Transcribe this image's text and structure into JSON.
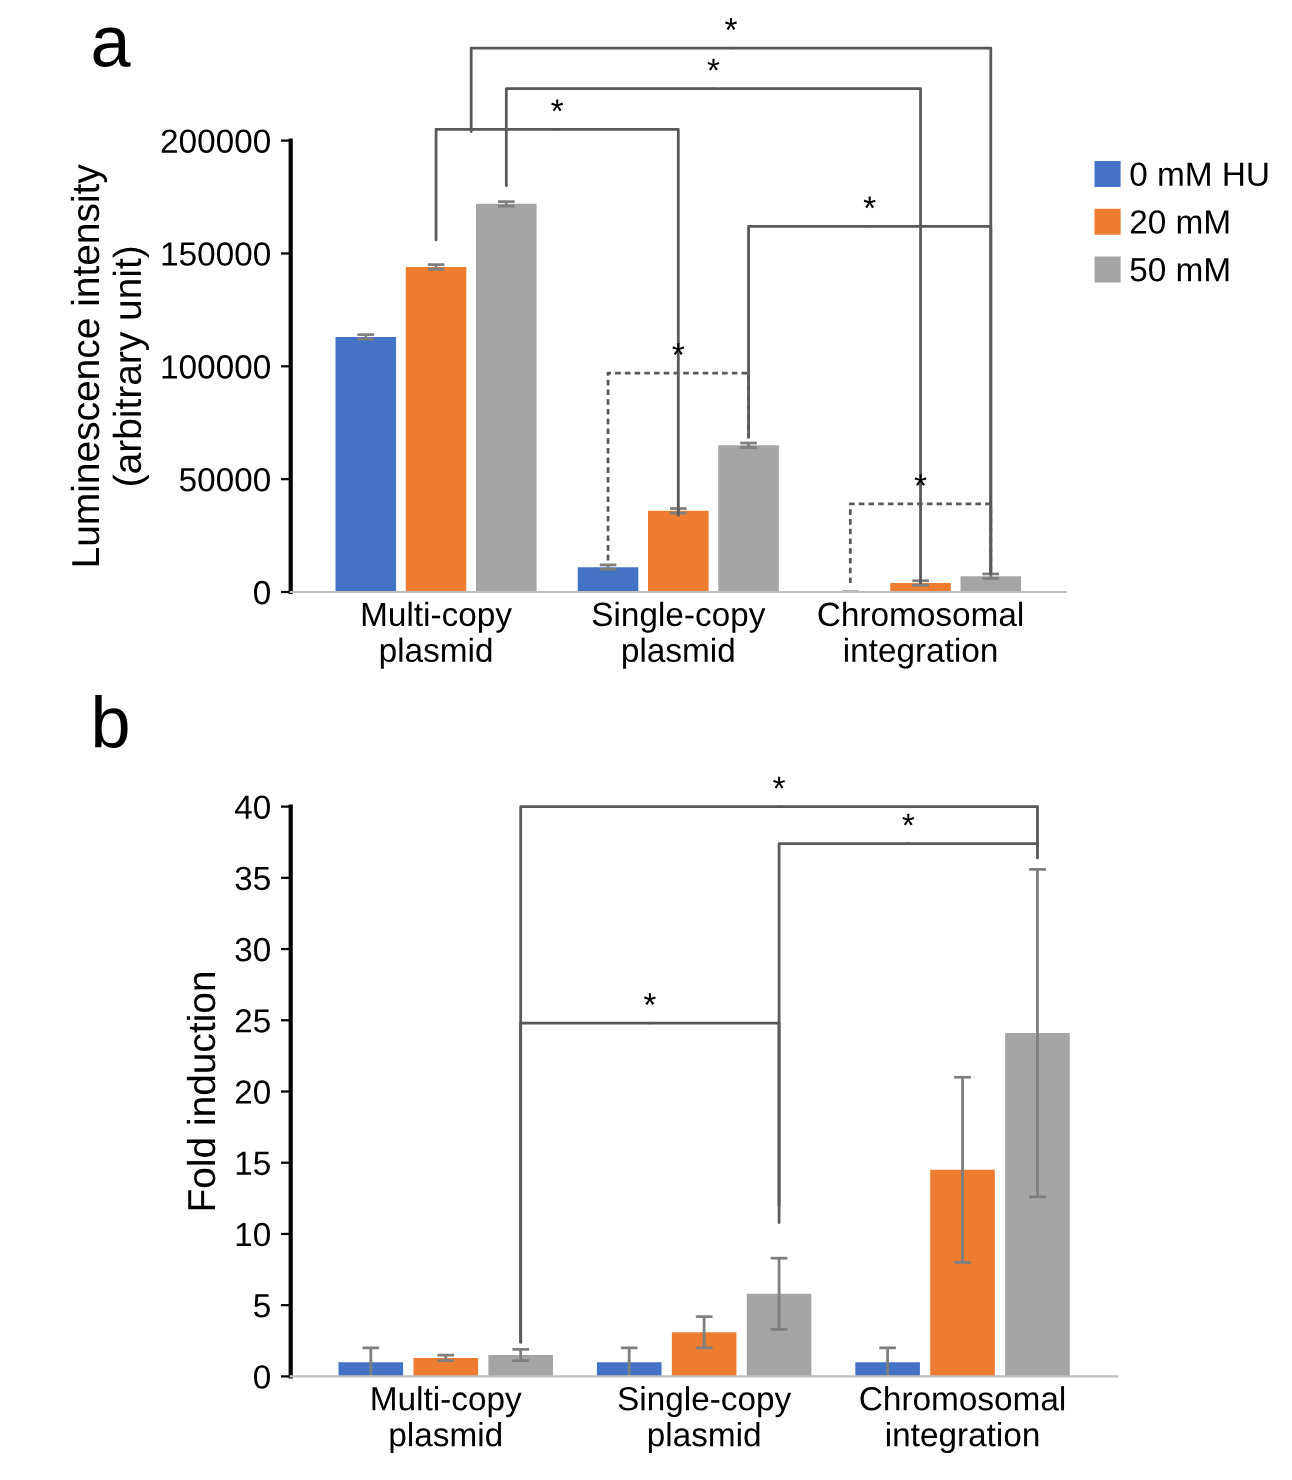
{
  "chart_data": [
    {
      "type": "bar",
      "title": "a",
      "ylabel": "Luminescence intensity\n(arbitrary unit)",
      "categories": [
        "Multi-copy\nplasmid",
        "Single-copy\nplasmid",
        "Chromosomal\nintegration"
      ],
      "series": [
        {
          "name": "0 mM HU",
          "color": "#4472c4",
          "values": [
            113000,
            11000,
            0
          ],
          "errors": [
            1000,
            1000,
            0
          ]
        },
        {
          "name": "20 mM",
          "color": "#ed7d31",
          "values": [
            144000,
            36000,
            4000
          ],
          "errors": [
            1000,
            1000,
            1000
          ]
        },
        {
          "name": "50 mM",
          "color": "#a5a5a5",
          "values": [
            172000,
            65000,
            7000
          ],
          "errors": [
            1000,
            1000,
            1000
          ]
        }
      ],
      "ylim": [
        0,
        200000
      ],
      "yticks": [
        0,
        50000,
        100000,
        150000,
        200000
      ],
      "grid": false,
      "legend": "top right",
      "annotations": [
        "*",
        "*",
        "*",
        "*",
        "*",
        "*"
      ]
    },
    {
      "type": "bar",
      "title": "b",
      "ylabel": "Fold induction",
      "categories": [
        "Multi-copy\nplasmid",
        "Single-copy\nplasmid",
        "Chromosomal\nintegration"
      ],
      "series": [
        {
          "color": "#4472c4",
          "values": [
            1,
            1,
            1
          ],
          "errors": [
            1,
            1,
            1
          ]
        },
        {
          "color": "#ed7d31",
          "values": [
            1.3,
            3.1,
            14.5
          ],
          "errors": [
            0.2,
            1.1,
            6.5
          ]
        },
        {
          "color": "#a5a5a5",
          "values": [
            1.5,
            5.8,
            24.1
          ],
          "errors": [
            0.4,
            2.5,
            11.5
          ]
        }
      ],
      "ylim": [
        0,
        40
      ],
      "yticks": [
        0,
        5,
        10,
        15,
        20,
        25,
        30,
        35,
        40
      ],
      "grid": false,
      "annotations": [
        "*",
        "*",
        "*"
      ]
    }
  ]
}
